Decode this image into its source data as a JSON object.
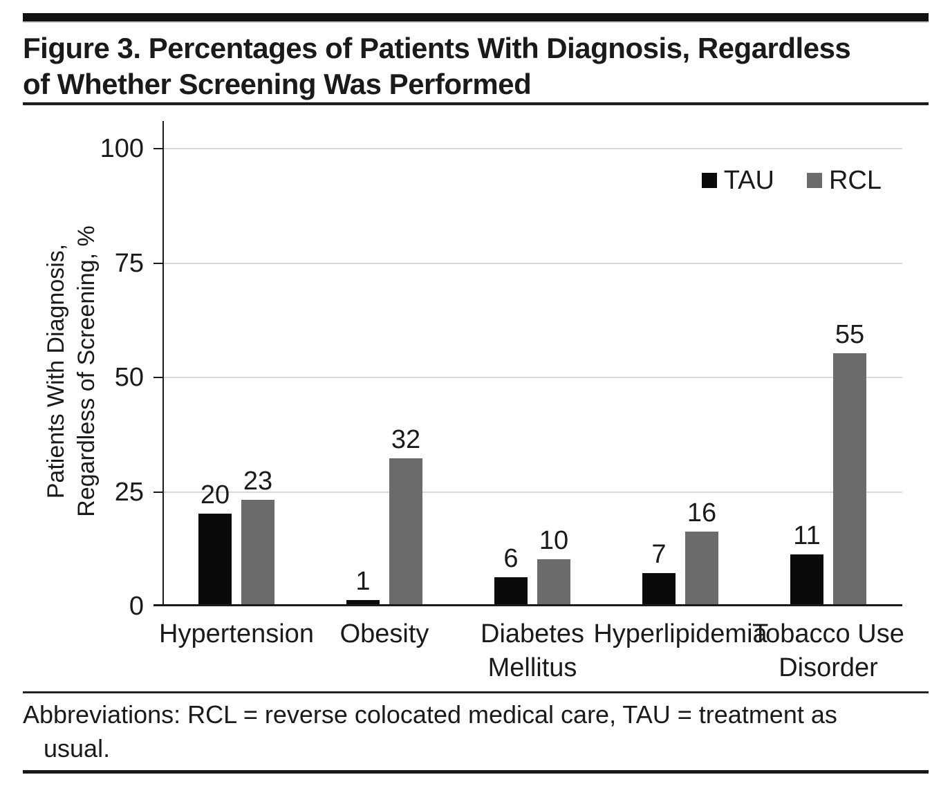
{
  "figure": {
    "title_line1": "Figure 3. Percentages of Patients With Diagnosis, Regardless",
    "title_line2": "of Whether Screening Was Performed"
  },
  "chart_data": {
    "type": "bar",
    "categories": [
      "Hypertension",
      "Obesity",
      "Diabetes Mellitus",
      "Hyperlipidemia",
      "Tobacco Use Disorder"
    ],
    "category_label_lines": [
      [
        "Hypertension"
      ],
      [
        "Obesity"
      ],
      [
        "Diabetes",
        "Mellitus"
      ],
      [
        "Hyperlipidemia"
      ],
      [
        "Tobacco Use",
        "Disorder"
      ]
    ],
    "series": [
      {
        "name": "TAU",
        "color": "#0a0a0a",
        "values": [
          20,
          1,
          6,
          7,
          11
        ]
      },
      {
        "name": "RCL",
        "color": "#6b6b6b",
        "values": [
          23,
          32,
          10,
          16,
          55
        ]
      }
    ],
    "ylabel_line1": "Patients With Diagnosis,",
    "ylabel_line2": "Regardless of Screening, %",
    "yticks": [
      0,
      25,
      50,
      75,
      100
    ],
    "ylim": [
      0,
      106
    ],
    "grid": "horizontal",
    "legend_position": "top-right",
    "bar_value_labels": true
  },
  "footer": {
    "line1": "Abbreviations: RCL = reverse colocated medical care, TAU = treatment as",
    "line2": "usual."
  },
  "colors": {
    "bar_tau": "#0a0a0a",
    "bar_rcl": "#6b6b6b",
    "gridline": "#d9d9d9",
    "axis": "#1a1a1a",
    "rule": "#1a1a1a"
  }
}
